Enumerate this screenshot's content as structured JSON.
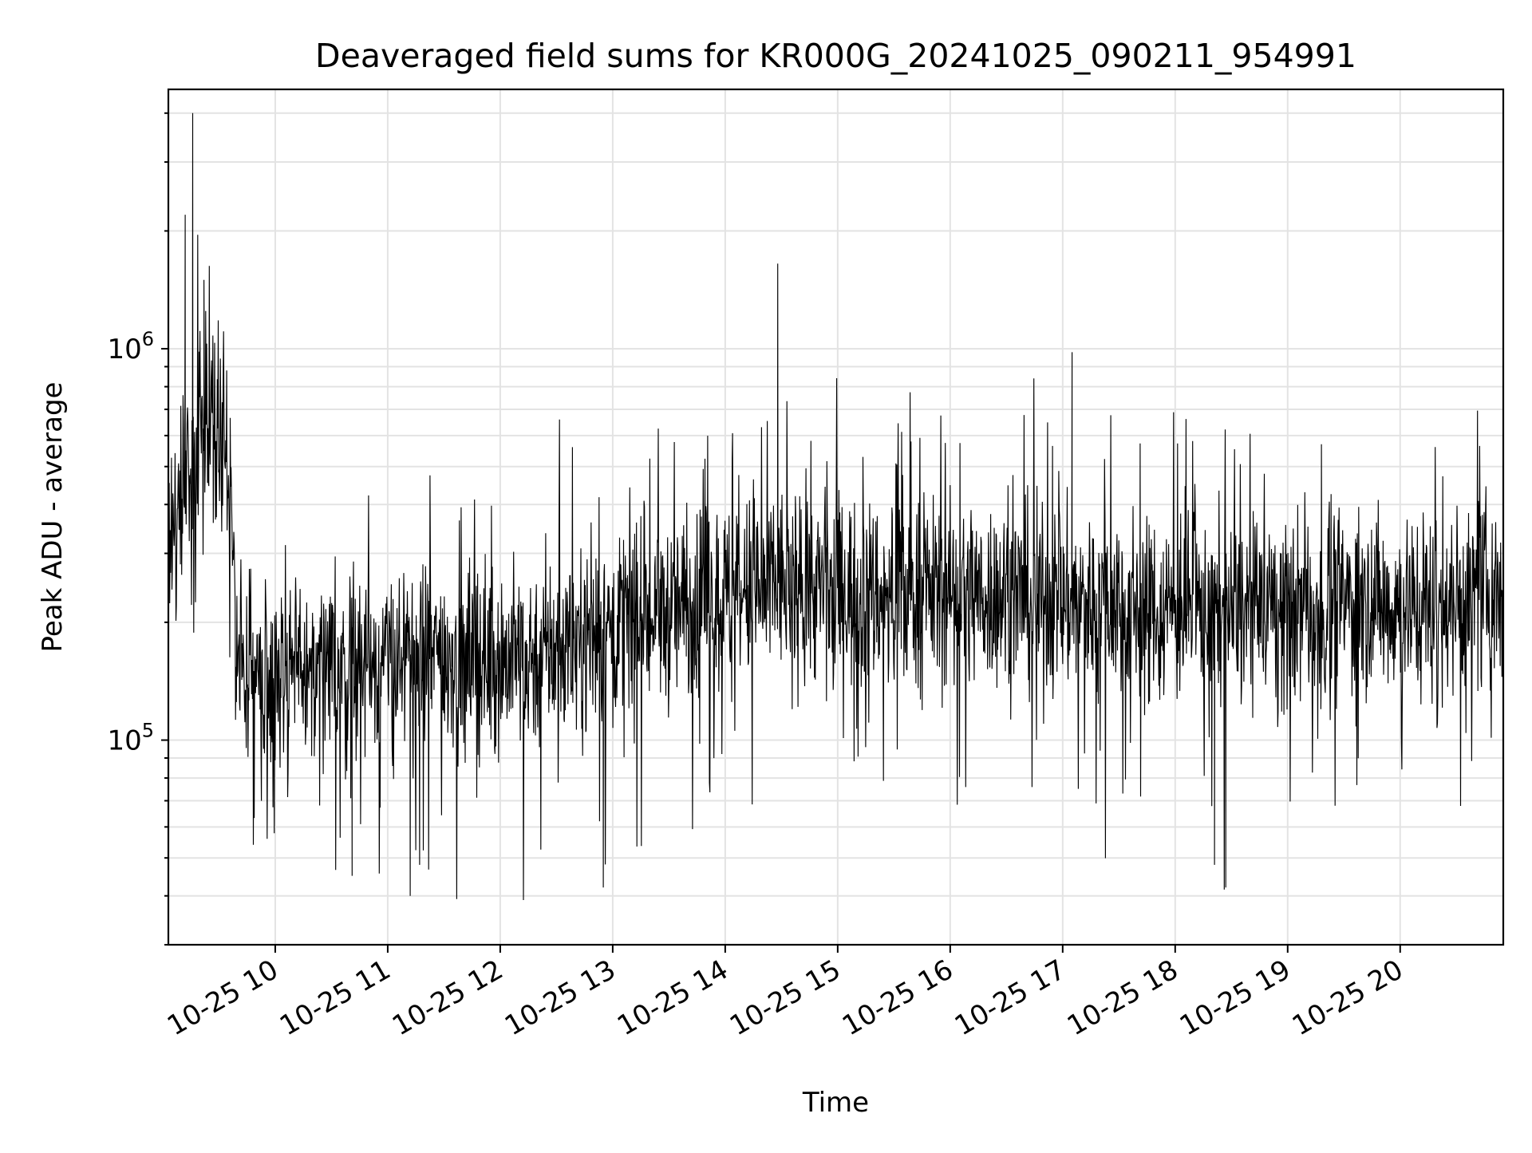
{
  "chart_data": {
    "type": "line",
    "title": "Deaveraged field sums for KR000G_20241025_090211_954991",
    "xlabel": "Time",
    "ylabel": "Peak ADU - average",
    "x_axis": {
      "type": "time",
      "range": [
        "2024-10-25 09:03",
        "2024-10-25 20:55"
      ],
      "ticks": [
        "10-25 10",
        "10-25 11",
        "10-25 12",
        "10-25 13",
        "10-25 14",
        "10-25 15",
        "10-25 16",
        "10-25 17",
        "10-25 18",
        "10-25 19",
        "10-25 20"
      ]
    },
    "y_axis": {
      "scale": "log",
      "range": [
        30000,
        4600000
      ],
      "major_ticks": [
        {
          "value": 100000,
          "base": "10",
          "exp": "5"
        },
        {
          "value": 1000000,
          "base": "10",
          "exp": "6"
        }
      ]
    },
    "grid": true,
    "legend": "none",
    "line_color": "#000000",
    "series": [
      {
        "x": [
          "09:03",
          "09:10",
          "09:15",
          "09:20",
          "09:25",
          "09:30",
          "09:35",
          "09:40",
          "10:00",
          "10:30",
          "11:00",
          "11:30",
          "12:00",
          "12:30",
          "13:00",
          "13:30",
          "14:00",
          "14:30",
          "15:00",
          "15:30",
          "16:00",
          "16:30",
          "17:00",
          "17:30",
          "18:00",
          "18:30",
          "19:00",
          "19:30",
          "20:00",
          "20:30",
          "20:55"
        ],
        "y": [
          260000,
          470000,
          520000,
          600000,
          680000,
          640000,
          470000,
          160000,
          150000,
          155000,
          160000,
          165000,
          160000,
          170000,
          195000,
          210000,
          230000,
          250000,
          240000,
          235000,
          240000,
          235000,
          225000,
          225000,
          215000,
          210000,
          215000,
          225000,
          220000,
          225000,
          245000
        ]
      }
    ],
    "peaks": [
      {
        "x": "09:12",
        "y": 2200000
      },
      {
        "x": "09:16",
        "y": 4000000
      },
      {
        "x": "09:22",
        "y": 1500000
      },
      {
        "x": "14:28",
        "y": 1650000
      },
      {
        "x": "17:05",
        "y": 980000
      },
      {
        "x": "19:18",
        "y": 570000
      }
    ],
    "dips": [
      {
        "x": "11:12",
        "y": 40000
      },
      {
        "x": "12:55",
        "y": 42000
      },
      {
        "x": "18:27",
        "y": 42000
      },
      {
        "x": "10:41",
        "y": 45000
      },
      {
        "x": "11:17",
        "y": 48000
      },
      {
        "x": "18:21",
        "y": 48000
      }
    ]
  }
}
